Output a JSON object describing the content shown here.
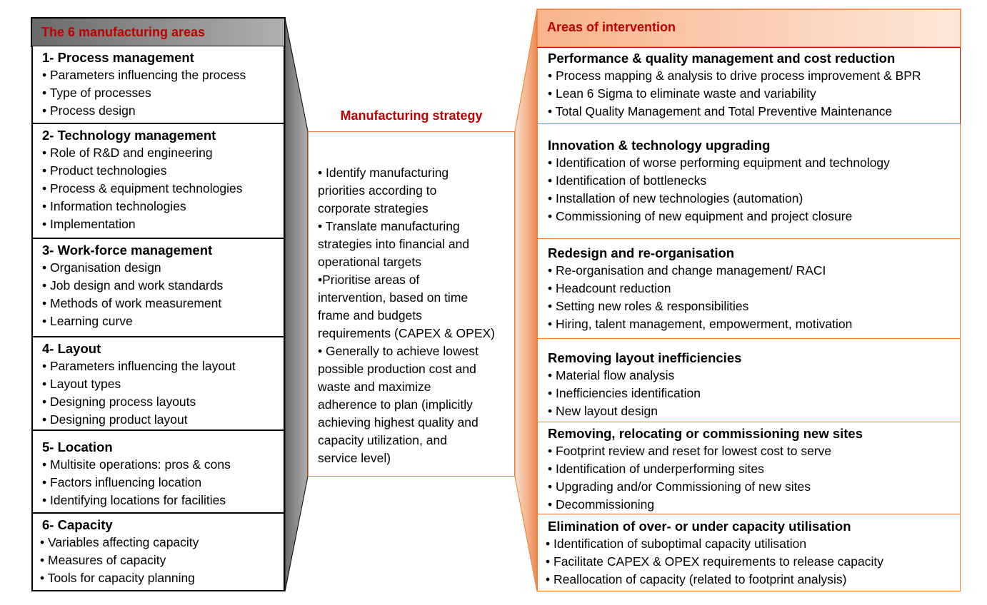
{
  "left": {
    "header": "The 6 manufacturing areas",
    "sections": [
      {
        "title": "1- Process management",
        "items": [
          "Parameters influencing the process",
          "Type of processes",
          "Process design"
        ]
      },
      {
        "title": "2- Technology management",
        "items": [
          "Role of R&D and engineering",
          "Product technologies",
          "Process  & equipment technologies",
          "Information technologies",
          "Implementation"
        ]
      },
      {
        "title": "3- Work-force management",
        "items": [
          "Organisation design",
          "Job design and  work standards",
          "Methods of work measurement",
          "Learning curve"
        ]
      },
      {
        "title": "4- Layout",
        "items": [
          "Parameters influencing the layout",
          "Layout types",
          "Designing  process layouts",
          "Designing product layout"
        ]
      },
      {
        "title": "5- Location",
        "items": [
          "Multisite operations: pros & cons",
          "Factors influencing location",
          "Identifying locations for facilities"
        ]
      },
      {
        "title": "6- Capacity",
        "items": [
          "Variables affecting capacity",
          "Measures of capacity",
          "Tools for capacity planning"
        ]
      }
    ]
  },
  "middle": {
    "title": "Manufacturing strategy",
    "lines": [
      "• Identify manufacturing",
      "priorities according to",
      "corporate strategies",
      "• Translate manufacturing",
      "strategies into financial and",
      "operational targets",
      "•Prioritise areas of",
      "intervention, based on time",
      "frame and budgets",
      "requirements (CAPEX & OPEX)",
      "• Generally to achieve lowest",
      "possible production cost and",
      "waste and maximize",
      "adherence to plan (implicitly",
      "achieving highest quality and",
      "capacity utilization, and",
      "service level)"
    ]
  },
  "right": {
    "header": "Areas of intervention",
    "sections": [
      {
        "title": "Performance & quality management and cost reduction",
        "items": [
          "Process mapping & analysis to drive  process improvement & BPR",
          "Lean 6 Sigma to eliminate waste and variability",
          "Total Quality Management and Total Preventive Maintenance"
        ]
      },
      {
        "title": "Innovation & technology upgrading",
        "items": [
          "Identification of worse performing equipment and technology",
          "Identification of bottlenecks",
          "Installation of new technologies (automation)",
          "Commissioning of new equipment and project closure"
        ]
      },
      {
        "title": "Redesign and re-organisation",
        "items": [
          "Re-organisation and change management/ RACI",
          "Headcount reduction",
          "Setting new roles & responsibilities",
          "Hiring, talent management, empowerment, motivation"
        ]
      },
      {
        "title": "Removing layout inefficiencies",
        "items": [
          "Material flow analysis",
          "Inefficiencies identification",
          "New layout design"
        ]
      },
      {
        "title": "Removing, relocating or commissioning new sites",
        "items": [
          "Footprint review and reset for lowest cost to serve",
          "Identification of underperforming sites",
          "Upgrading and/or Commissioning of new sites",
          "Decommissioning"
        ]
      },
      {
        "title": "Elimination of over- or under capacity utilisation",
        "items": [
          "Identification of  suboptimal capacity utilisation",
          "Facilitate CAPEX & OPEX requirements to release capacity",
          "Reallocation of capacity (related to footprint analysis)"
        ]
      }
    ]
  },
  "colors": {
    "accent_red": "#c00000",
    "orange": "#ed7d31",
    "gray_panel": "#808080"
  }
}
